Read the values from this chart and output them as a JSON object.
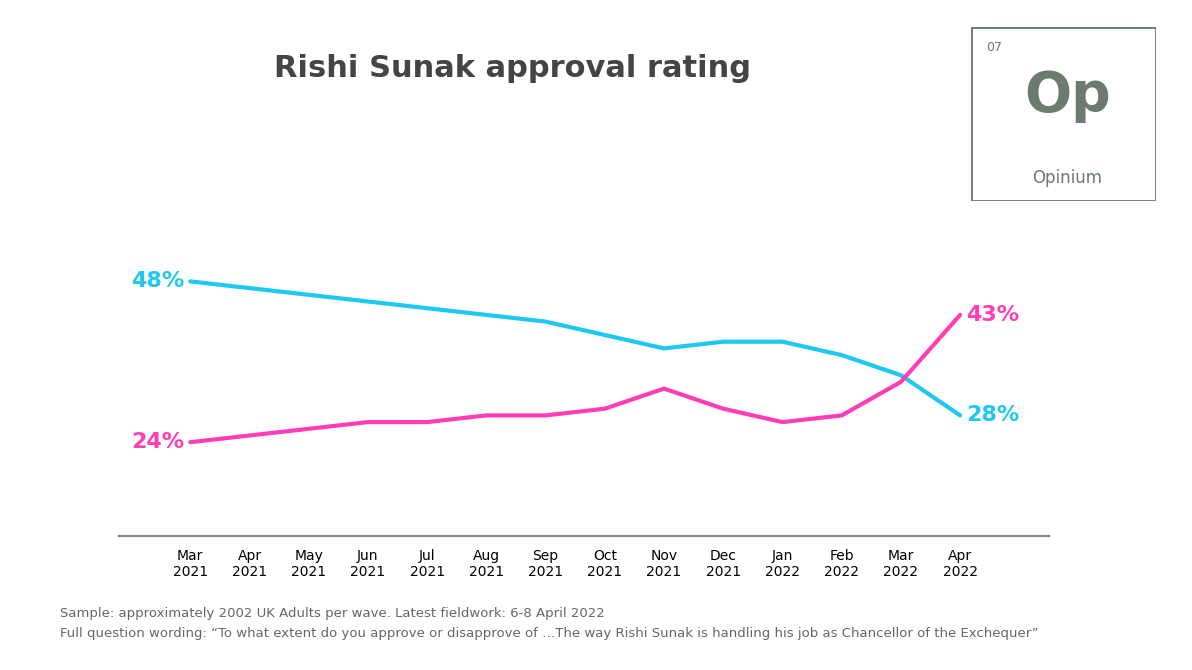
{
  "title": "Rishi Sunak approval rating",
  "title_fontsize": 22,
  "title_fontweight": "bold",
  "title_color": "#444444",
  "background_color": "#ffffff",
  "approve_color": "#1EC8F0",
  "disapprove_color": "#FF3EB5",
  "x_labels": [
    "Mar\n2021",
    "Apr\n2021",
    "May\n2021",
    "Jun\n2021",
    "Jul\n2021",
    "Aug\n2021",
    "Sep\n2021",
    "Oct\n2021",
    "Nov\n2021",
    "Dec\n2021",
    "Jan\n2022",
    "Feb\n2022",
    "Mar\n2022",
    "Apr\n2022"
  ],
  "approve_values": [
    48,
    47,
    46,
    45,
    44,
    43,
    42,
    40,
    38,
    39,
    39,
    37,
    34,
    28
  ],
  "disapprove_values": [
    24,
    25,
    26,
    27,
    27,
    28,
    28,
    29,
    32,
    29,
    27,
    28,
    33,
    43
  ],
  "approve_start_label": "48%",
  "approve_end_label": "28%",
  "disapprove_start_label": "24%",
  "disapprove_end_label": "43%",
  "line_width": 3.0,
  "footnote_line1": "Sample: approximately 2002 UK Adults per wave. Latest fieldwork: 6-8 April 2022",
  "footnote_line2": "Full question wording: “To what extent do you approve or disapprove of …The way Rishi Sunak is handling his job as Chancellor of the Exchequer”",
  "footnote_fontsize": 9.5,
  "footnote_color": "#666666",
  "axis_line_color": "#888888",
  "tick_label_color": "#666666",
  "tick_label_fontsize": 10,
  "opinium_box_color": "#6b7b6e",
  "ylim": [
    10,
    65
  ],
  "xlim": [
    -1.2,
    14.5
  ],
  "label_fontsize": 16
}
